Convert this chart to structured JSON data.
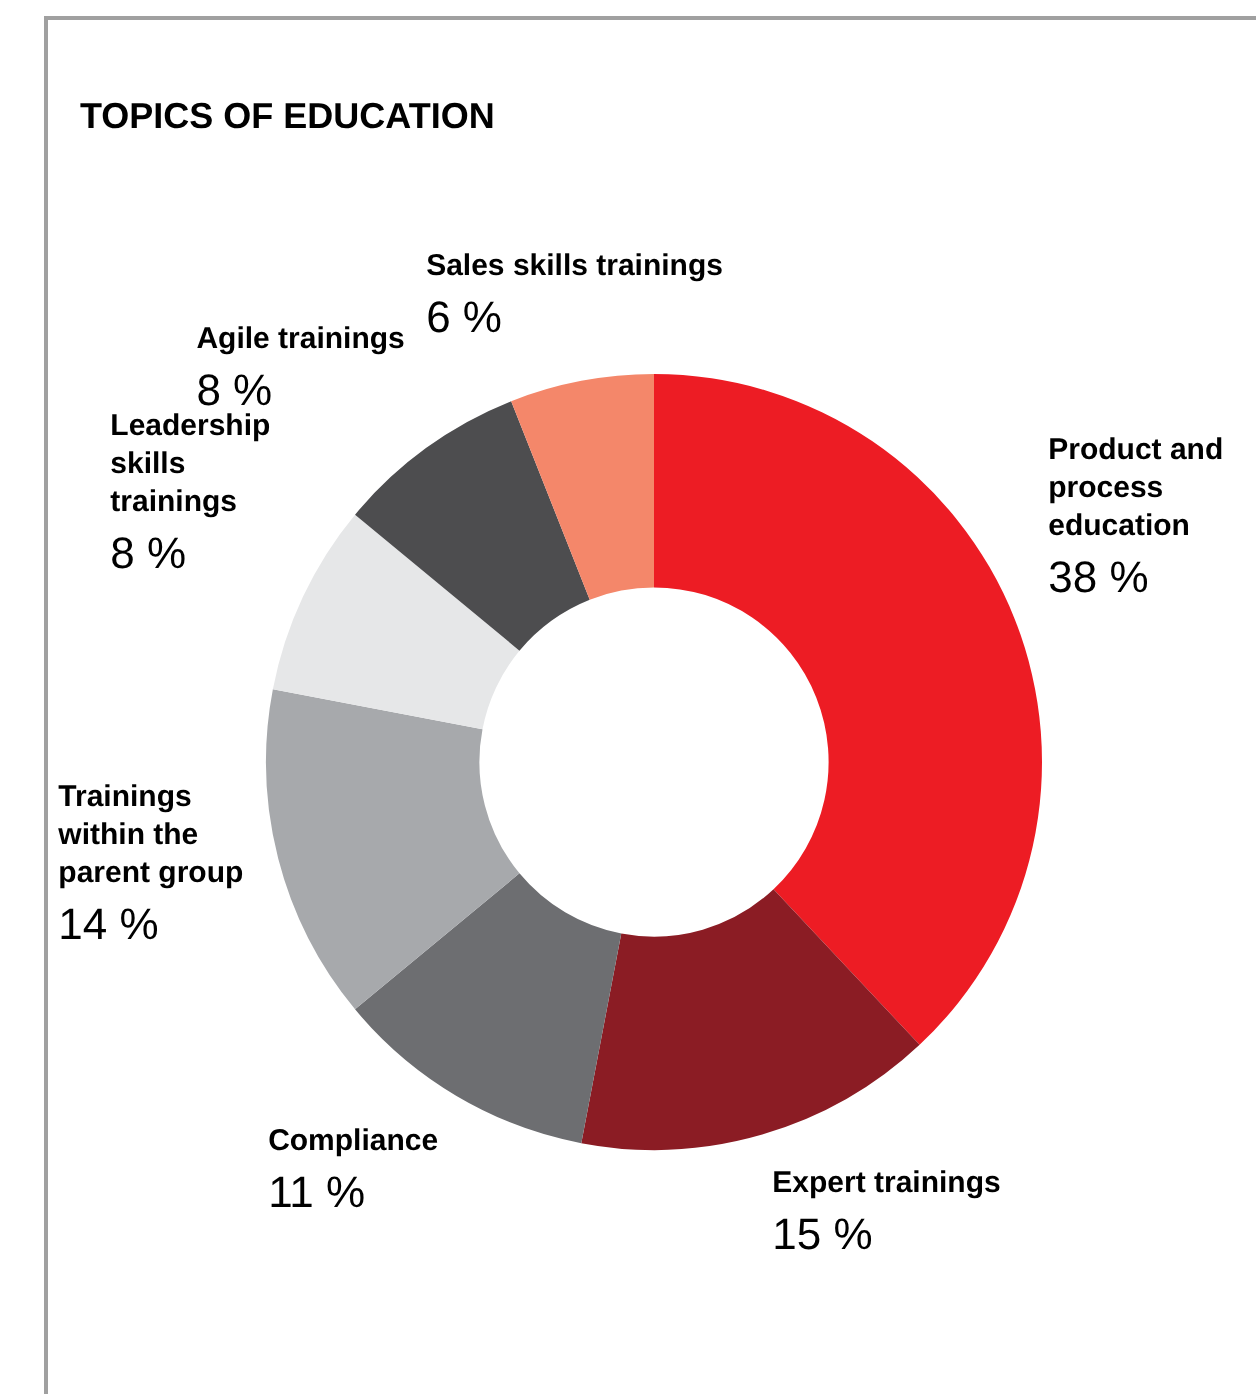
{
  "chart_data": {
    "type": "donut",
    "title": "TOPICS OF EDUCATION",
    "categories": [
      "Product and process education",
      "Expert trainings",
      "Compliance",
      "Trainings within the parent group",
      "Leadership skills trainings",
      "Agile trainings",
      "Sales skills trainings"
    ],
    "values": [
      38,
      15,
      11,
      14,
      8,
      8,
      6
    ],
    "value_labels": [
      "38 %",
      "15 %",
      "11 %",
      "14 %",
      "8 %",
      "8 %",
      "6 %"
    ],
    "colors": [
      "#ed1c24",
      "#8b1c24",
      "#6d6e71",
      "#a7a9ac",
      "#e6e7e8",
      "#4d4d4f",
      "#f4876a"
    ],
    "legend": false
  }
}
